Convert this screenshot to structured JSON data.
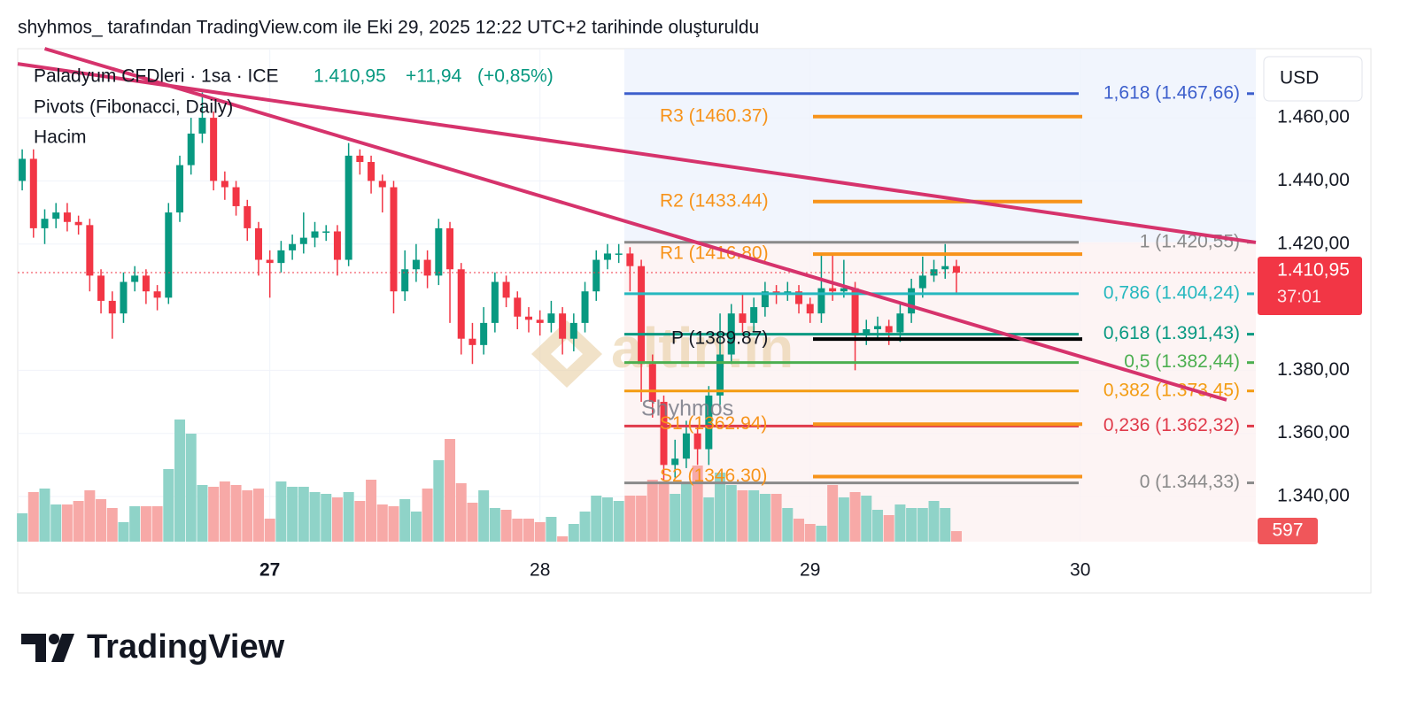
{
  "chart_data": {
    "type": "candlestick",
    "header": "shyhmos_ tarafından TradingView.com ile Eki 29, 2025 12:22 UTC+2 tarihinde oluşturuldu",
    "symbol": "Paladyum CFDleri · 1sa · ICE",
    "last": {
      "value": 1410.95,
      "label": "1.410,95"
    },
    "change": {
      "value": 11.94,
      "label": "+11,94"
    },
    "change_pct": {
      "value": 0.85,
      "label": "(+0,85%)"
    },
    "indicators": [
      "Pivots (Fibonacci, Daily)",
      "Hacim"
    ],
    "currency": "USD",
    "countdown": "37:01",
    "watermark": "Shyhmos",
    "logo_text": "altin.in",
    "brand": "TradingView",
    "up_color": "#089981",
    "down_color": "#f23645",
    "xlim": [
      -22.4,
      87.6
    ],
    "xticks": [
      {
        "value": 0,
        "label": "27"
      },
      {
        "value": 24,
        "label": "28"
      },
      {
        "value": 48,
        "label": "29"
      },
      {
        "value": 72,
        "label": "30"
      }
    ],
    "ylim": [
      1325.7,
      1481.9
    ],
    "yticks": [
      {
        "value": 1340,
        "label": "1.340,00"
      },
      {
        "value": 1360,
        "label": "1.360,00"
      },
      {
        "value": 1380,
        "label": "1.380,00"
      },
      {
        "value": 1420,
        "label": "1.420,00"
      },
      {
        "value": 1440,
        "label": "1.440,00"
      },
      {
        "value": 1460,
        "label": "1.460,00"
      }
    ],
    "vlim": [
      0,
      8000
    ],
    "grid": true,
    "x": [
      -22,
      -21,
      -20,
      -19,
      -18,
      -17,
      -16,
      -15,
      -14,
      -13,
      -12,
      -11,
      -10,
      -9,
      -8,
      -7,
      -6,
      -5,
      -4,
      -3,
      -2,
      -1,
      0,
      1,
      2,
      3,
      4,
      5,
      6,
      7,
      8,
      9,
      10,
      11,
      12,
      13,
      14,
      15,
      16,
      17,
      18,
      19,
      20,
      21,
      22,
      23,
      24,
      25,
      26,
      27,
      28,
      29,
      30,
      31,
      32,
      33,
      34,
      35,
      36,
      37,
      38,
      39,
      40,
      41,
      42,
      43,
      44,
      45,
      46,
      47,
      48,
      49,
      50,
      51,
      52,
      53,
      54,
      55,
      56,
      57,
      58,
      59,
      60,
      61
    ],
    "open": [
      1440,
      1447,
      1425,
      1428,
      1430,
      1427,
      1426,
      1410,
      1402,
      1398,
      1408,
      1410,
      1405,
      1403,
      1430,
      1445,
      1455,
      1460,
      1440,
      1438,
      1432,
      1425,
      1415,
      1414,
      1418,
      1420,
      1422,
      1424,
      1424,
      1415,
      1448,
      1446,
      1440,
      1438,
      1405,
      1412,
      1415,
      1410,
      1425,
      1412,
      1390,
      1388,
      1395,
      1408,
      1403,
      1397,
      1396,
      1395,
      1398,
      1390,
      1395,
      1405,
      1415,
      1417,
      1417,
      1413,
      1382,
      1370,
      1350,
      1352,
      1360,
      1355,
      1372,
      1385,
      1398,
      1395,
      1400,
      1405,
      1404,
      1405,
      1401,
      1398,
      1406,
      1405,
      1406,
      1391,
      1393,
      1394,
      1392,
      1398,
      1406,
      1410,
      1412,
      1413
    ],
    "high": [
      1450,
      1450,
      1431,
      1433,
      1433,
      1429,
      1428,
      1412,
      1405,
      1411,
      1413,
      1412,
      1407,
      1433,
      1448,
      1460,
      1468,
      1462,
      1443,
      1440,
      1434,
      1427,
      1418,
      1421,
      1423,
      1430,
      1427,
      1426,
      1426,
      1452,
      1450,
      1448,
      1442,
      1440,
      1418,
      1420,
      1418,
      1428,
      1427,
      1414,
      1395,
      1400,
      1411,
      1410,
      1405,
      1400,
      1399,
      1402,
      1400,
      1398,
      1408,
      1418,
      1420,
      1420,
      1419,
      1415,
      1385,
      1372,
      1358,
      1364,
      1362,
      1375,
      1398,
      1401,
      1404,
      1403,
      1408,
      1407,
      1408,
      1407,
      1403,
      1417,
      1417,
      1415,
      1408,
      1396,
      1397,
      1396,
      1401,
      1409,
      1416,
      1415,
      1420,
      1415
    ],
    "low": [
      1437,
      1422,
      1420,
      1425,
      1424,
      1423,
      1405,
      1398,
      1390,
      1395,
      1405,
      1401,
      1399,
      1401,
      1427,
      1442,
      1452,
      1437,
      1434,
      1429,
      1421,
      1410,
      1403,
      1411,
      1415,
      1417,
      1419,
      1421,
      1410,
      1413,
      1442,
      1436,
      1430,
      1398,
      1402,
      1408,
      1406,
      1407,
      1395,
      1385,
      1382,
      1385,
      1392,
      1400,
      1393,
      1392,
      1391,
      1392,
      1385,
      1386,
      1392,
      1402,
      1412,
      1414,
      1405,
      1370,
      1365,
      1345,
      1346,
      1349,
      1350,
      1350,
      1369,
      1382,
      1392,
      1392,
      1397,
      1401,
      1402,
      1398,
      1395,
      1395,
      1402,
      1403,
      1380,
      1388,
      1390,
      1388,
      1389,
      1395,
      1403,
      1408,
      1409,
      1404
    ],
    "close": [
      1447,
      1425,
      1428,
      1430,
      1427,
      1426,
      1410,
      1402,
      1398,
      1408,
      1410,
      1405,
      1403,
      1430,
      1445,
      1455,
      1460,
      1440,
      1438,
      1432,
      1425,
      1415,
      1414,
      1418,
      1420,
      1422,
      1424,
      1424,
      1415,
      1448,
      1446,
      1440,
      1438,
      1405,
      1412,
      1415,
      1410,
      1425,
      1412,
      1390,
      1388,
      1395,
      1408,
      1403,
      1397,
      1396,
      1395,
      1398,
      1390,
      1395,
      1405,
      1415,
      1417,
      1417,
      1413,
      1382,
      1370,
      1350,
      1352,
      1360,
      1355,
      1372,
      1385,
      1398,
      1395,
      1400,
      1405,
      1404,
      1405,
      1401,
      1398,
      1406,
      1405,
      1406,
      1391,
      1393,
      1394,
      1392,
      1398,
      1406,
      1410,
      1412,
      1413,
      1410.95
    ],
    "volume": [
      1600,
      2800,
      3000,
      2100,
      2100,
      2300,
      2900,
      2400,
      1900,
      1100,
      2000,
      2000,
      2000,
      4100,
      6900,
      6100,
      3200,
      3100,
      3400,
      3200,
      2900,
      3000,
      1300,
      3400,
      3100,
      3100,
      2800,
      2700,
      2500,
      2800,
      2300,
      3500,
      2100,
      2000,
      2400,
      1700,
      3000,
      4600,
      5800,
      3300,
      2200,
      2900,
      1900,
      1800,
      1300,
      1300,
      1100,
      1400,
      300,
      1000,
      1700,
      2600,
      2500,
      2300,
      2600,
      2600,
      3500,
      3400,
      2700,
      3300,
      4300,
      2500,
      3900,
      3200,
      2900,
      2900,
      2700,
      2700,
      1900,
      1300,
      1000,
      900,
      3200,
      2500,
      2800,
      2600,
      1800,
      1500,
      2100,
      1900,
      1900,
      2300,
      1900,
      597
    ],
    "fib_levels": [
      {
        "value": 1467.66,
        "label": "1,618 (1.467,66)",
        "color": "#3d5fcc"
      },
      {
        "value": 1420.55,
        "label": "1 (1.420,55)",
        "color": "#8a8a8a"
      },
      {
        "value": 1404.24,
        "label": "0,786 (1.404,24)",
        "color": "#26b8bf"
      },
      {
        "value": 1391.43,
        "label": "0,618 (1.391,43)",
        "color": "#089981"
      },
      {
        "value": 1382.44,
        "label": "0,5 (1.382,44)",
        "color": "#4caf50"
      },
      {
        "value": 1373.45,
        "label": "0,382 (1.373,45)",
        "color": "#f39c12"
      },
      {
        "value": 1362.32,
        "label": "0,236 (1.362,32)",
        "color": "#e03a4a"
      },
      {
        "value": 1344.33,
        "label": "0 (1.344,33)",
        "color": "#8a8a8a"
      }
    ],
    "pivots": [
      {
        "value": 1460.37,
        "label": "R3 (1460.37)",
        "color": "#f7931a"
      },
      {
        "value": 1433.44,
        "label": "R2 (1433.44)",
        "color": "#f7931a"
      },
      {
        "value": 1416.8,
        "label": "R1 (1416.80)",
        "color": "#f7931a"
      },
      {
        "value": 1389.87,
        "label": "P (1389.87)",
        "color": "#000000"
      },
      {
        "value": 1362.94,
        "label": "S1 (1362.94)",
        "color": "#f7931a"
      },
      {
        "value": 1346.3,
        "label": "S2 (1346.30)",
        "color": "#f7931a"
      }
    ],
    "trendlines": [
      {
        "x": [
          -22.4,
          87.6
        ],
        "y": [
          1477.1,
          1420.5
        ],
        "color": "#d6336c"
      },
      {
        "x": [
          -20.0,
          85.0
        ],
        "y": [
          1481.9,
          1370.6
        ],
        "color": "#d6336c"
      }
    ]
  }
}
